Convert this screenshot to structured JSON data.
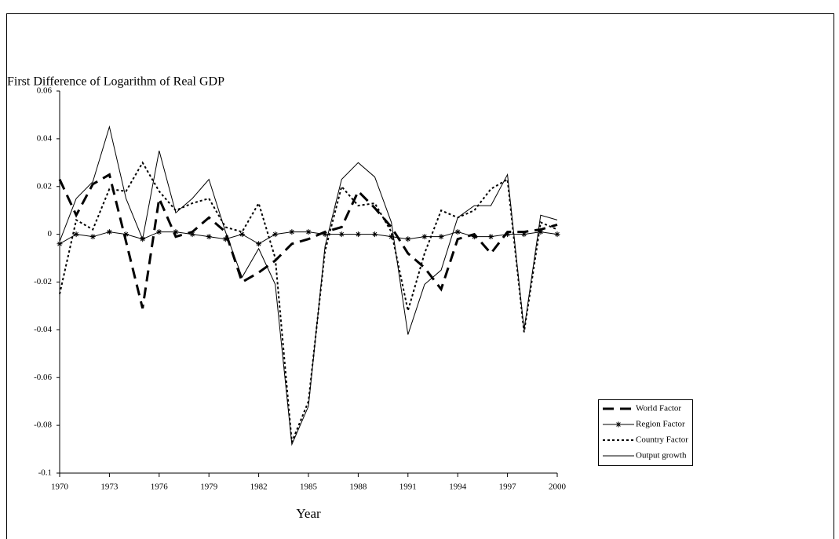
{
  "chart_data": {
    "type": "line",
    "title": "First Difference of Logarithm of Real GDP",
    "x_label": "Year",
    "x": [
      1970,
      1971,
      1972,
      1973,
      1974,
      1975,
      1976,
      1977,
      1978,
      1979,
      1980,
      1981,
      1982,
      1983,
      1984,
      1985,
      1986,
      1987,
      1988,
      1989,
      1990,
      1991,
      1992,
      1993,
      1994,
      1995,
      1996,
      1997,
      1998,
      1999,
      2000
    ],
    "xlim": [
      1970,
      2000
    ],
    "xticks": [
      1970,
      1973,
      1976,
      1979,
      1982,
      1985,
      1988,
      1991,
      1994,
      1997,
      2000
    ],
    "ylim": [
      -0.1,
      0.06
    ],
    "yticks": [
      0.06,
      0.04,
      0.02,
      0,
      -0.02,
      -0.04,
      -0.06,
      -0.08,
      -0.1
    ],
    "legend": "lower right",
    "series": [
      {
        "name": "World Factor",
        "color": "#000000",
        "values": [
          0.023,
          0.008,
          0.021,
          0.025,
          -0.003,
          -0.031,
          0.015,
          -0.001,
          0.001,
          0.007,
          0.001,
          -0.02,
          -0.016,
          -0.011,
          -0.004,
          -0.002,
          0.001,
          0.003,
          0.018,
          0.011,
          0.003,
          -0.008,
          -0.014,
          -0.023,
          -0.002,
          0.0,
          -0.008,
          0.001,
          0.001,
          0.002,
          0.004
        ]
      },
      {
        "name": "Region Factor",
        "color": "#000000",
        "values": [
          -0.004,
          0.0,
          -0.001,
          0.001,
          0.0,
          -0.002,
          0.001,
          0.001,
          0.0,
          -0.001,
          -0.002,
          0.0,
          -0.004,
          0.0,
          0.001,
          0.001,
          0.0,
          0.0,
          0.0,
          0.0,
          -0.001,
          -0.002,
          -0.001,
          -0.001,
          0.001,
          -0.001,
          -0.001,
          0.0,
          0.0,
          0.001,
          0.0
        ]
      },
      {
        "name": "Country Factor",
        "color": "#000000",
        "values": [
          -0.025,
          0.006,
          0.002,
          0.019,
          0.018,
          0.03,
          0.018,
          0.01,
          0.013,
          0.015,
          0.003,
          0.001,
          0.013,
          -0.01,
          -0.087,
          -0.07,
          -0.007,
          0.02,
          0.012,
          0.013,
          0.001,
          -0.032,
          -0.008,
          0.01,
          0.007,
          0.01,
          0.019,
          0.023,
          -0.041,
          0.005,
          0.002
        ]
      },
      {
        "name": "Output growth",
        "color": "#000000",
        "values": [
          -0.003,
          0.015,
          0.022,
          0.045,
          0.015,
          -0.002,
          0.035,
          0.009,
          0.015,
          0.023,
          0.001,
          -0.018,
          -0.006,
          -0.021,
          -0.088,
          -0.072,
          -0.005,
          0.023,
          0.03,
          0.024,
          0.005,
          -0.042,
          -0.021,
          -0.015,
          0.007,
          0.012,
          0.012,
          0.025,
          -0.04,
          0.008,
          0.006
        ]
      }
    ]
  }
}
